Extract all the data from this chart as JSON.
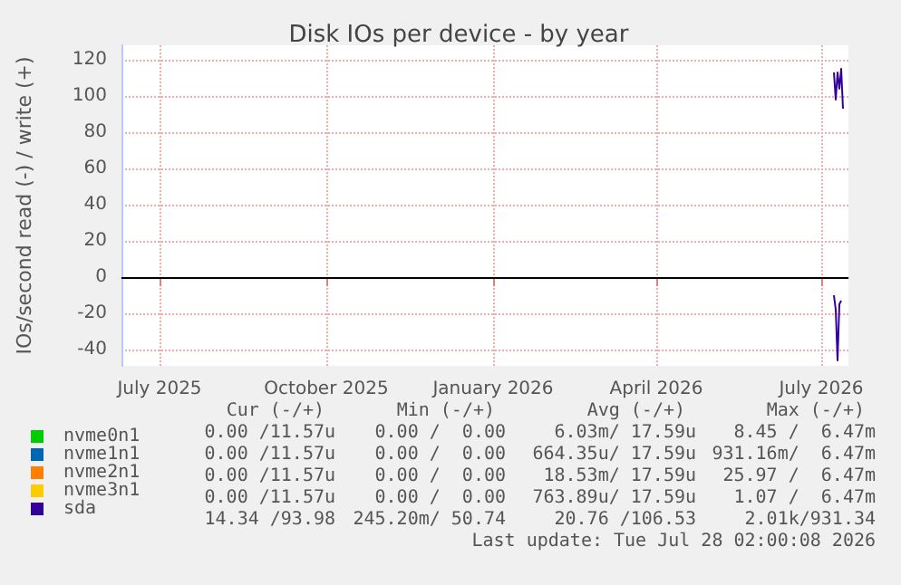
{
  "chart_data": {
    "type": "line",
    "title": "Disk IOs per device - by year",
    "ylabel": "IOs/second read (-) / write (+)",
    "x": [
      "2026-07-23",
      "2026-07-24",
      "2026-07-25",
      "2026-07-26",
      "2026-07-27",
      "2026-07-28"
    ],
    "series": [
      {
        "name": "nvme0n1",
        "color": "#00cc00",
        "values": [
          null,
          null,
          null,
          null,
          null,
          null
        ]
      },
      {
        "name": "nvme1n1",
        "color": "#0066b3",
        "values": [
          null,
          null,
          null,
          null,
          null,
          null
        ]
      },
      {
        "name": "nvme2n1",
        "color": "#ff8000",
        "values": [
          null,
          null,
          null,
          null,
          null,
          null
        ]
      },
      {
        "name": "nvme3n1",
        "color": "#ffcc00",
        "values": [
          null,
          null,
          null,
          null,
          null,
          null
        ]
      },
      {
        "name": "sda",
        "color": "#330099",
        "values": [
          113,
          98,
          113,
          104,
          115,
          93
        ]
      },
      {
        "color": "#330099",
        "values": [
          -10,
          -18,
          -46,
          -15,
          -13,
          null
        ]
      }
    ],
    "xlim": [
      "2025-06-25",
      "2026-07-31"
    ],
    "xticks": [
      {
        "value": "2025-07-16",
        "label": "July 2025"
      },
      {
        "value": "2025-10-16",
        "label": "October 2025"
      },
      {
        "value": "2026-01-16",
        "label": "January 2026"
      },
      {
        "value": "2026-04-16",
        "label": "April 2026"
      },
      {
        "value": "2026-07-16",
        "label": "July 2026"
      }
    ],
    "ylim": [
      -49,
      128
    ],
    "yticks": [
      -40,
      -20,
      0,
      20,
      40,
      60,
      80,
      100,
      120
    ],
    "ref_lines": [
      {
        "axis": "y",
        "value": 0,
        "color": "#000000"
      }
    ],
    "grid": true,
    "legend": "bottom left",
    "annotations": [
      "Cur (-/+)",
      "Min (-/+)",
      "Avg (-/+)",
      "Max (-/+)",
      "0.00 /11.57u",
      "0.00 /  0.00",
      "6.03m/ 17.59u",
      "8.45 /  6.47m",
      "0.00 /11.57u",
      "0.00 /  0.00",
      "664.35u/ 17.59u",
      "931.16m/  6.47m",
      "0.00 /11.57u",
      "0.00 /  0.00",
      "18.53m/ 17.59u",
      "25.97 /  6.47m",
      "0.00 /11.57u",
      "0.00 /  0.00",
      "763.89u/ 17.59u",
      "1.07 /  6.47m",
      "14.34 /93.98",
      "245.20m/ 50.74",
      "20.76 /106.53",
      "2.01k/931.34",
      "Last update: Tue Jul 28 02:00:08 2026"
    ]
  }
}
